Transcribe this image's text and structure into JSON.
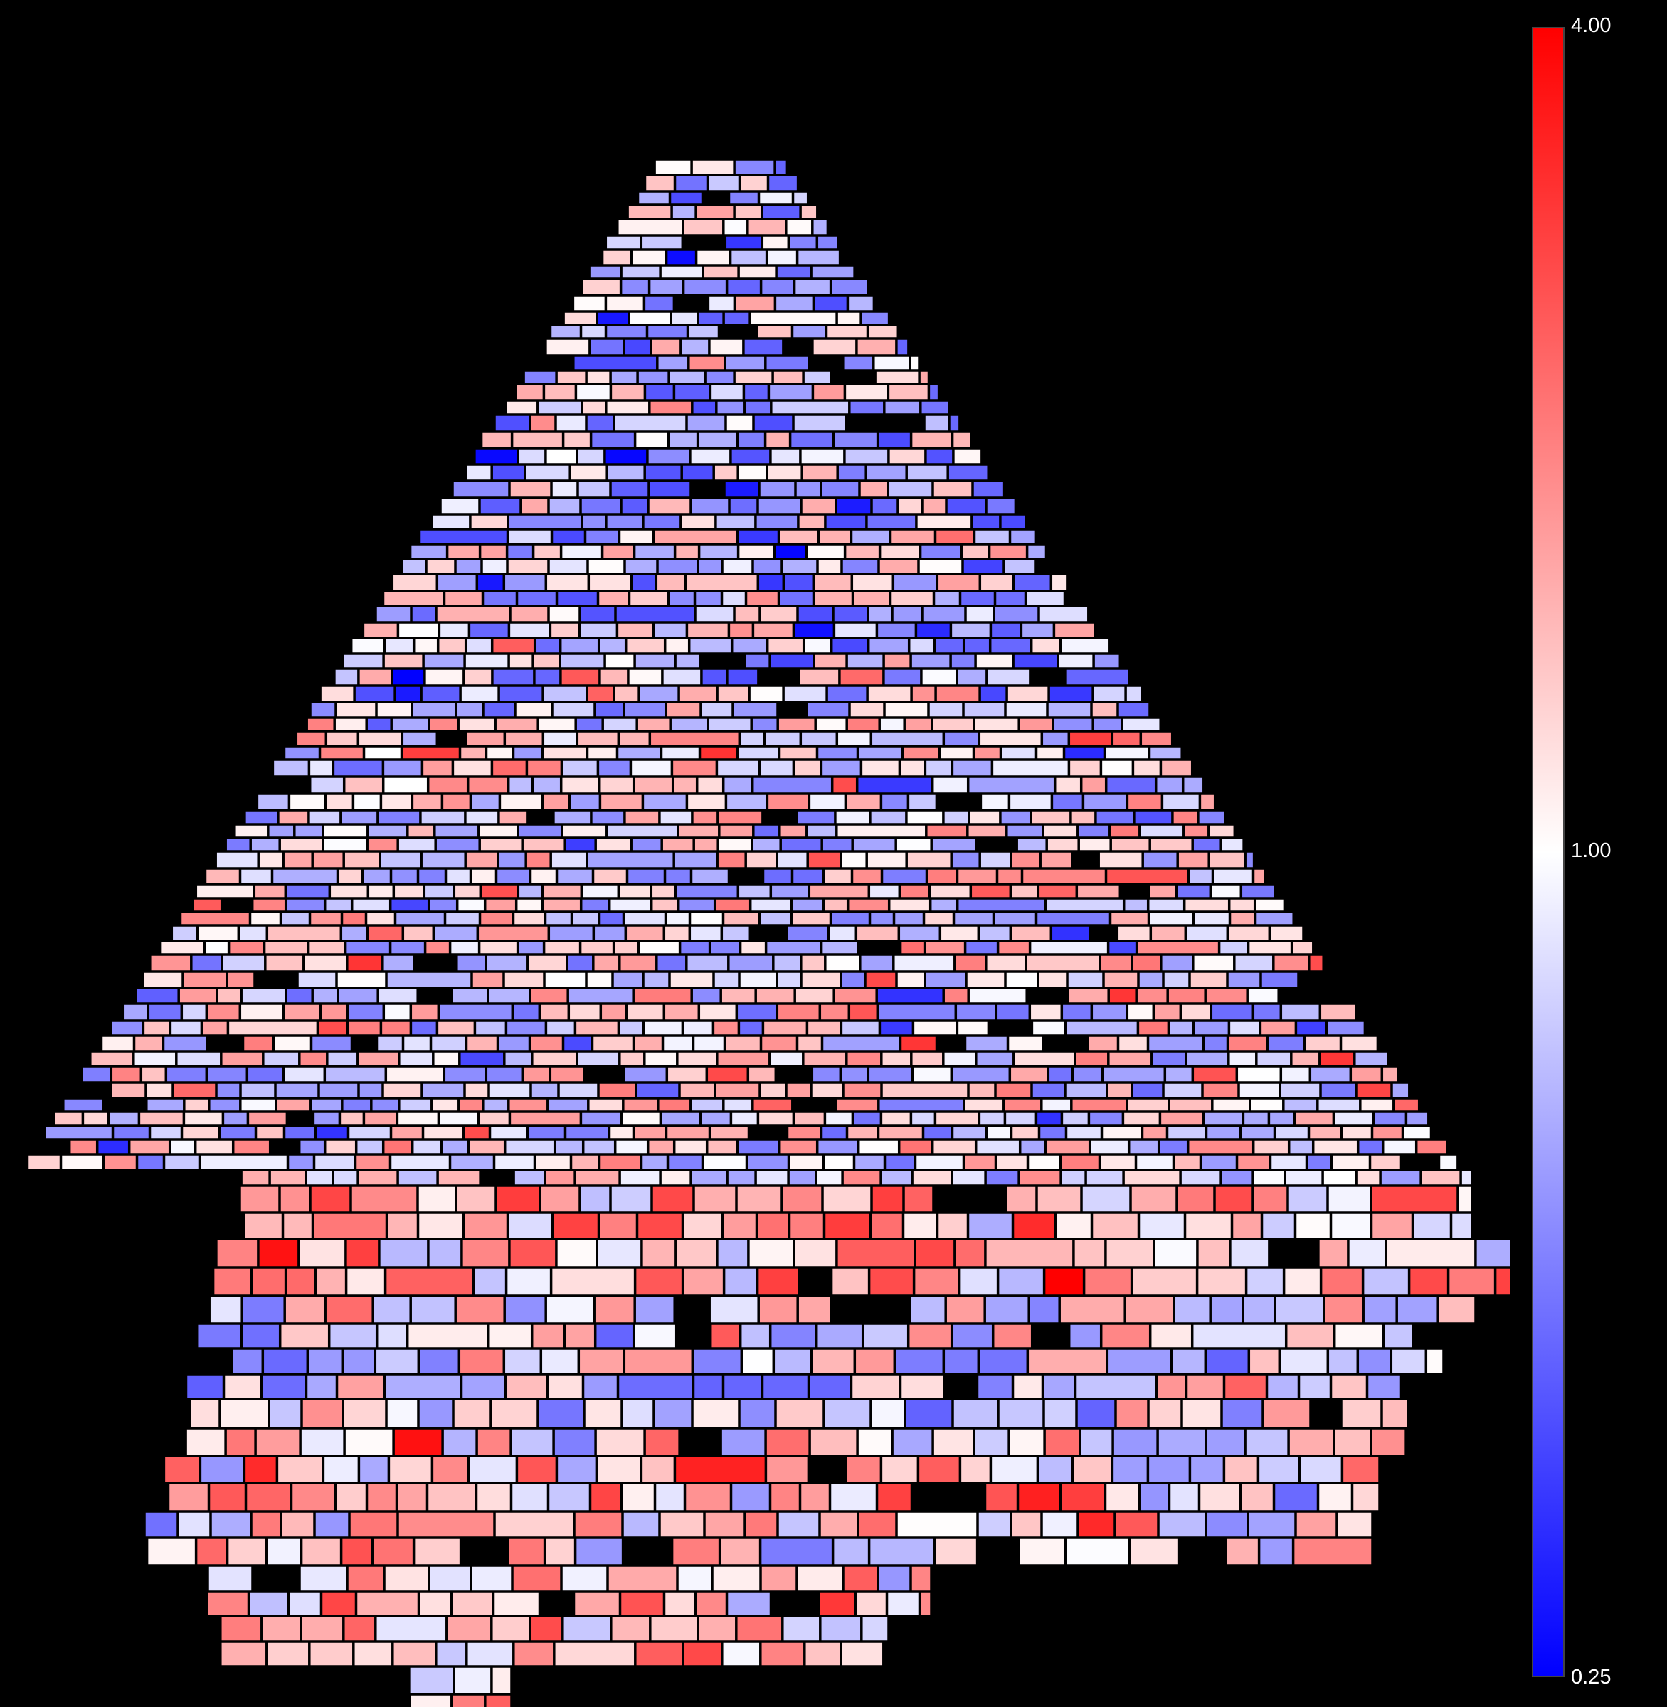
{
  "colorbar": {
    "max_label": "4.00",
    "mid_label": "1.00",
    "min_label": "0.25",
    "scale": "log2",
    "colors": {
      "low": "#0000ff",
      "mid": "#ffffff",
      "high": "#ff0000"
    },
    "orientation": "vertical"
  },
  "figure": {
    "background": "#000000",
    "cell_outline": "#000000"
  }
}
